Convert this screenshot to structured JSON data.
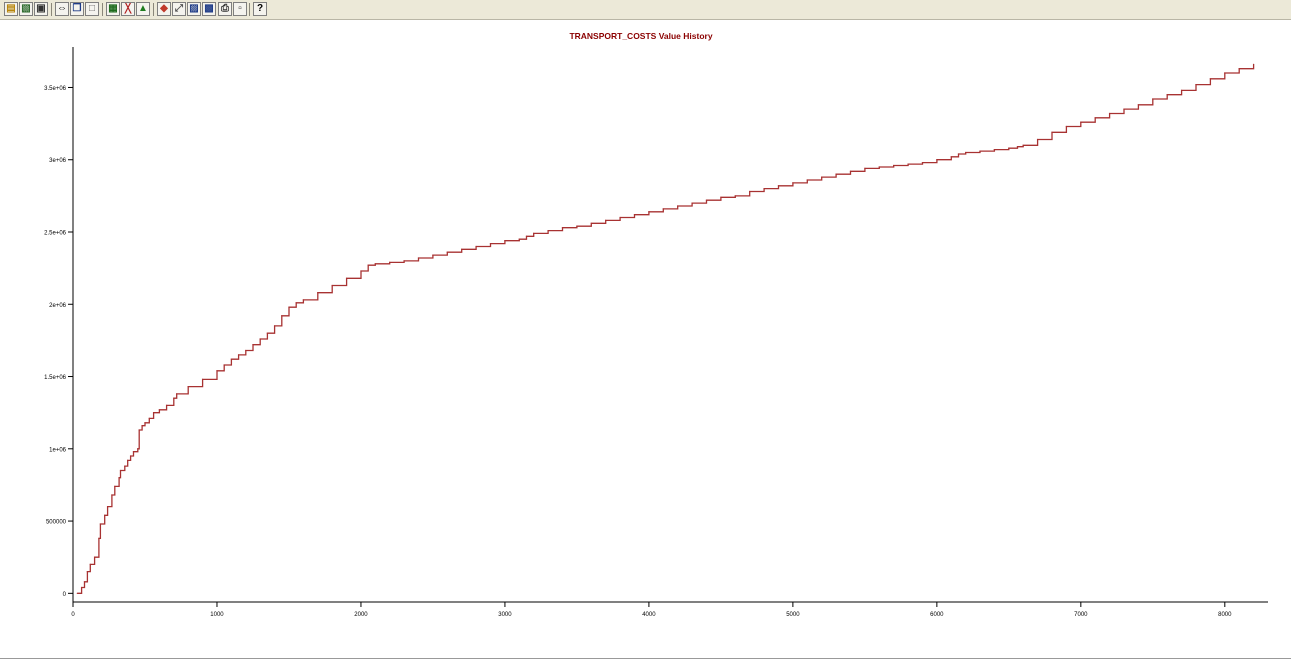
{
  "toolbar": {
    "buttons": [
      {
        "icon": "open-folder-icon"
      },
      {
        "icon": "open-file-icon"
      },
      {
        "icon": "save-icon"
      },
      {
        "icon": "fit-x-icon"
      },
      {
        "icon": "copy-icon"
      },
      {
        "icon": "paste-icon"
      },
      {
        "icon": "grid-icon"
      },
      {
        "icon": "chart-type-icon"
      },
      {
        "icon": "area-icon"
      },
      {
        "icon": "color-palette-icon"
      },
      {
        "icon": "zoom-icon"
      },
      {
        "icon": "export-image-icon"
      },
      {
        "icon": "save-image-icon"
      },
      {
        "icon": "print-icon"
      },
      {
        "icon": "print-preview-icon"
      },
      {
        "icon": "help-icon",
        "label": "?"
      }
    ]
  },
  "chart_data": {
    "type": "line",
    "title": "TRANSPORT_COSTS Value History",
    "xlabel": "",
    "ylabel": "",
    "xlim": [
      0,
      8300
    ],
    "ylim": [
      -60000,
      3780000
    ],
    "xticks": [
      0,
      1000,
      2000,
      3000,
      4000,
      5000,
      6000,
      7000,
      8000
    ],
    "xtick_labels": [
      "0",
      "1000",
      "2000",
      "3000",
      "4000",
      "5000",
      "6000",
      "7000",
      "8000"
    ],
    "yticks": [
      0,
      500000,
      1000000,
      1500000,
      2000000,
      2500000,
      3000000,
      3500000
    ],
    "ytick_labels": [
      "0",
      "500000",
      "1e+06",
      "1.5e+06",
      "2e+06",
      "2.5e+06",
      "3e+06",
      "3.5e+06"
    ],
    "grid": false,
    "colors": {
      "line": "#a83232",
      "title": "#8b0000"
    },
    "series": [
      {
        "x": [
          30,
          60,
          80,
          100,
          120,
          150,
          180,
          190,
          220,
          240,
          270,
          290,
          320,
          330,
          360,
          380,
          400,
          420,
          450,
          460,
          480,
          500,
          530,
          560,
          600,
          650,
          700,
          720,
          800,
          900,
          1000,
          1050,
          1100,
          1150,
          1200,
          1250,
          1300,
          1350,
          1400,
          1450,
          1500,
          1550,
          1600,
          1700,
          1800,
          1900,
          2000,
          2050,
          2100,
          2200,
          2300,
          2400,
          2500,
          2600,
          2700,
          2800,
          2900,
          3000,
          3100,
          3150,
          3200,
          3300,
          3400,
          3500,
          3600,
          3700,
          3800,
          3900,
          4000,
          4100,
          4200,
          4300,
          4400,
          4500,
          4600,
          4700,
          4800,
          4900,
          5000,
          5100,
          5200,
          5300,
          5400,
          5500,
          5600,
          5700,
          5800,
          5900,
          6000,
          6100,
          6150,
          6200,
          6300,
          6400,
          6500,
          6560,
          6600,
          6700,
          6800,
          6900,
          7000,
          7100,
          7200,
          7300,
          7400,
          7500,
          7600,
          7700,
          7800,
          7900,
          8000,
          8100,
          8200
        ],
        "y": [
          0,
          40000,
          80000,
          150000,
          200000,
          250000,
          380000,
          480000,
          540000,
          600000,
          680000,
          740000,
          800000,
          850000,
          880000,
          920000,
          950000,
          980000,
          1000000,
          1130000,
          1160000,
          1180000,
          1210000,
          1250000,
          1270000,
          1300000,
          1350000,
          1380000,
          1430000,
          1480000,
          1540000,
          1580000,
          1620000,
          1650000,
          1680000,
          1720000,
          1760000,
          1800000,
          1850000,
          1920000,
          1980000,
          2010000,
          2030000,
          2080000,
          2130000,
          2180000,
          2230000,
          2270000,
          2280000,
          2290000,
          2300000,
          2320000,
          2340000,
          2360000,
          2380000,
          2400000,
          2420000,
          2440000,
          2450000,
          2470000,
          2490000,
          2510000,
          2530000,
          2540000,
          2560000,
          2580000,
          2600000,
          2620000,
          2640000,
          2660000,
          2680000,
          2700000,
          2720000,
          2740000,
          2750000,
          2780000,
          2800000,
          2820000,
          2840000,
          2860000,
          2880000,
          2900000,
          2920000,
          2940000,
          2950000,
          2960000,
          2970000,
          2980000,
          3000000,
          3020000,
          3040000,
          3050000,
          3060000,
          3070000,
          3080000,
          3090000,
          3100000,
          3140000,
          3190000,
          3230000,
          3260000,
          3290000,
          3320000,
          3350000,
          3380000,
          3420000,
          3450000,
          3480000,
          3520000,
          3560000,
          3600000,
          3630000,
          3660000
        ]
      }
    ]
  }
}
